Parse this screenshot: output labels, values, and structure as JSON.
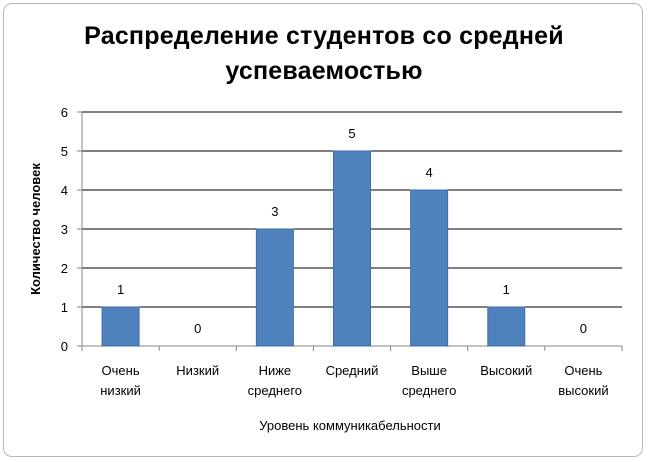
{
  "chart_data": {
    "type": "bar",
    "title_lines": [
      "Распределение студентов со средней",
      "успеваемостью"
    ],
    "xlabel": "Уровень коммуникабельности",
    "ylabel": "Количество человек",
    "categories": [
      [
        "Очень",
        "низкий"
      ],
      [
        "Низкий"
      ],
      [
        "Ниже",
        "среднего"
      ],
      [
        "Средний"
      ],
      [
        "Выше",
        "среднего"
      ],
      [
        "Высокий"
      ],
      [
        "Очень",
        "высокий"
      ]
    ],
    "values": [
      1,
      0,
      3,
      5,
      4,
      1,
      0
    ],
    "data_labels": [
      "1",
      "0",
      "3",
      "5",
      "4",
      "1",
      "0"
    ],
    "y_ticks": [
      "0",
      "1",
      "2",
      "3",
      "4",
      "5",
      "6"
    ],
    "ylim": [
      0,
      6
    ],
    "grid": "horizontal",
    "legend": "none",
    "colors": {
      "bar": "#4f81bd",
      "bar_edge": "#3c6fa8",
      "grid": "#000000",
      "axis": "#868686"
    }
  }
}
